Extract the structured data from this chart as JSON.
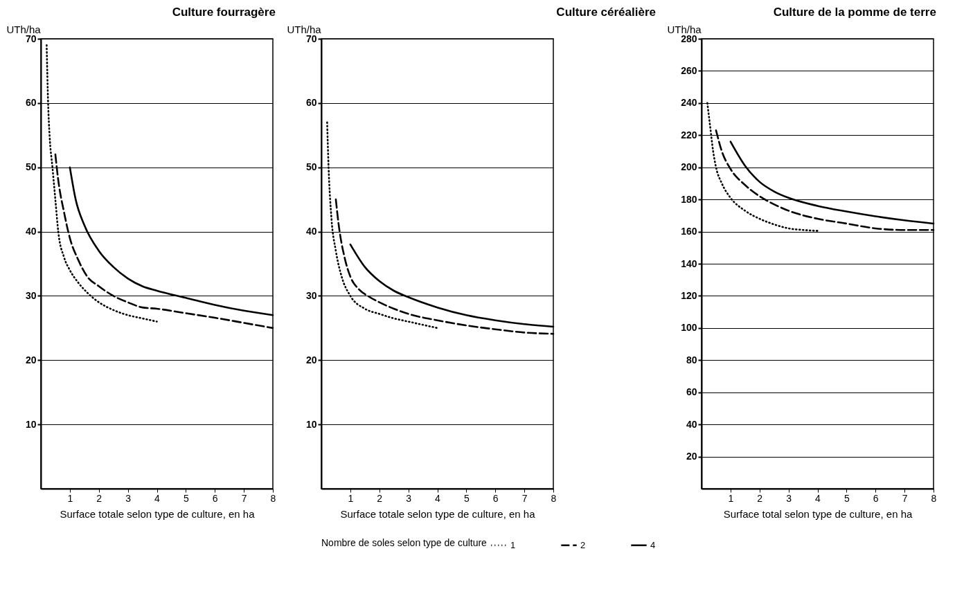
{
  "chart_data": [
    {
      "type": "line",
      "title": "Culture fourragère",
      "xlabel": "Surface totale selon type de culture, en ha",
      "ylabel": "UTh/ha",
      "grid": "y",
      "xlim": [
        0,
        8
      ],
      "xticks": [
        1,
        2,
        3,
        4,
        5,
        6,
        7,
        8
      ],
      "ylim": [
        0,
        70
      ],
      "yticks": [
        10,
        20,
        30,
        40,
        50,
        60,
        70
      ],
      "series": [
        {
          "name": "1",
          "color": "#000000",
          "line_style": "dotted",
          "x": [
            0.2,
            0.25,
            0.3,
            0.4,
            0.5,
            0.6,
            0.8,
            1,
            1.3,
            1.6,
            2,
            2.5,
            3,
            3.5,
            4
          ],
          "values": [
            69,
            60,
            55,
            50,
            45,
            40,
            36,
            34,
            32,
            30.5,
            29,
            27.8,
            27,
            26.5,
            26
          ]
        },
        {
          "name": "2",
          "color": "#000000",
          "line_style": "dashed",
          "x": [
            0.5,
            0.6,
            0.8,
            1,
            1.3,
            1.6,
            2,
            2.5,
            3,
            3.5,
            4,
            5,
            6,
            7,
            8
          ],
          "values": [
            52,
            48,
            43,
            39,
            35.5,
            33,
            31.5,
            30,
            29,
            28.2,
            28,
            27.3,
            26.6,
            25.8,
            25
          ]
        },
        {
          "name": "4",
          "color": "#000000",
          "line_style": "solid",
          "x": [
            1,
            1.2,
            1.5,
            2,
            2.5,
            3,
            3.5,
            4,
            5,
            6,
            7,
            8
          ],
          "values": [
            50,
            45,
            41,
            37,
            34.5,
            32.7,
            31.5,
            30.8,
            29.7,
            28.6,
            27.7,
            27
          ]
        }
      ]
    },
    {
      "type": "line",
      "title": "Culture céréalière",
      "xlabel": "Surface totale selon type de culture, en ha",
      "ylabel": "UTh/ha",
      "legend_title": "Nombre de soles selon type de culture",
      "legend": "bottom",
      "grid": "y",
      "xlim": [
        0,
        8
      ],
      "xticks": [
        1,
        2,
        3,
        4,
        5,
        6,
        7,
        8
      ],
      "ylim": [
        0,
        70
      ],
      "yticks": [
        10,
        20,
        30,
        40,
        50,
        60,
        70
      ],
      "series": [
        {
          "name": "1",
          "color": "#000000",
          "line_style": "dotted",
          "x": [
            0.2,
            0.25,
            0.35,
            0.5,
            0.7,
            1,
            1.5,
            2,
            2.5,
            3,
            3.5,
            4
          ],
          "values": [
            57,
            50,
            42,
            37,
            33,
            30,
            28,
            27.2,
            26.5,
            26,
            25.5,
            25
          ]
        },
        {
          "name": "2",
          "color": "#000000",
          "line_style": "dashed",
          "x": [
            0.5,
            0.6,
            0.8,
            1,
            1.3,
            1.6,
            2,
            2.5,
            3,
            4,
            5,
            6,
            7,
            8
          ],
          "values": [
            45,
            41,
            36,
            33,
            31,
            30,
            29,
            28,
            27.2,
            26.2,
            25.4,
            24.8,
            24.3,
            24.1
          ]
        },
        {
          "name": "4",
          "color": "#000000",
          "line_style": "solid",
          "x": [
            1,
            1.5,
            2,
            2.5,
            3,
            4,
            5,
            6,
            7,
            8
          ],
          "values": [
            38,
            34.5,
            32.3,
            30.8,
            29.8,
            28.2,
            27,
            26.2,
            25.6,
            25.2
          ]
        }
      ]
    },
    {
      "type": "line",
      "title": "Culture de la pomme de terre",
      "xlabel": "Surface total selon type de culture, en ha",
      "ylabel": "UTh/ha",
      "grid": "y",
      "xlim": [
        0,
        8
      ],
      "xticks": [
        1,
        2,
        3,
        4,
        5,
        6,
        7,
        8
      ],
      "ylim": [
        0,
        280
      ],
      "yticks": [
        20,
        40,
        60,
        80,
        100,
        120,
        140,
        160,
        180,
        200,
        220,
        240,
        260,
        280
      ],
      "series": [
        {
          "name": "1",
          "color": "#000000",
          "line_style": "dotted",
          "x": [
            0.2,
            0.3,
            0.4,
            0.5,
            0.7,
            1,
            1.5,
            2,
            2.5,
            3,
            3.5,
            4
          ],
          "values": [
            240,
            225,
            210,
            200,
            190,
            181,
            173,
            168,
            164.5,
            162,
            161,
            160.5
          ]
        },
        {
          "name": "2",
          "color": "#000000",
          "line_style": "dashed",
          "x": [
            0.5,
            0.7,
            1,
            1.5,
            2,
            2.5,
            3,
            4,
            5,
            6,
            7,
            8
          ],
          "values": [
            223,
            210,
            199,
            189,
            182,
            177,
            173,
            168,
            165,
            162,
            161,
            161
          ]
        },
        {
          "name": "4",
          "color": "#000000",
          "line_style": "solid",
          "x": [
            1,
            1.5,
            2,
            2.5,
            3,
            4,
            5,
            6,
            7,
            8
          ],
          "values": [
            216,
            201,
            191,
            185,
            181,
            176,
            172.5,
            169.5,
            167,
            165
          ]
        }
      ]
    }
  ]
}
